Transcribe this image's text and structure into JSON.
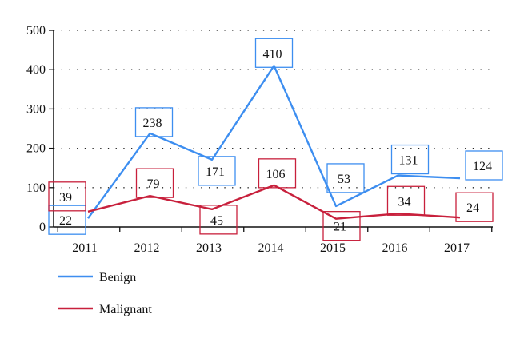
{
  "chart_data": {
    "type": "line",
    "title": "",
    "xlabel": "",
    "ylabel": "",
    "categories": [
      "2011",
      "2012",
      "2013",
      "2014",
      "2015",
      "2016",
      "2017"
    ],
    "ylim": [
      0,
      500
    ],
    "yticks": [
      "0",
      "100",
      "200",
      "300",
      "400",
      "500"
    ],
    "grid": "dotted horizontal",
    "legend_position": "bottom-left",
    "series": [
      {
        "name": "Benign",
        "color": "#3d8ef0",
        "values": [
          22,
          238,
          171,
          410,
          53,
          131,
          124
        ]
      },
      {
        "name": "Malignant",
        "color": "#c8203c",
        "values": [
          39,
          79,
          45,
          106,
          21,
          34,
          24
        ]
      }
    ]
  }
}
